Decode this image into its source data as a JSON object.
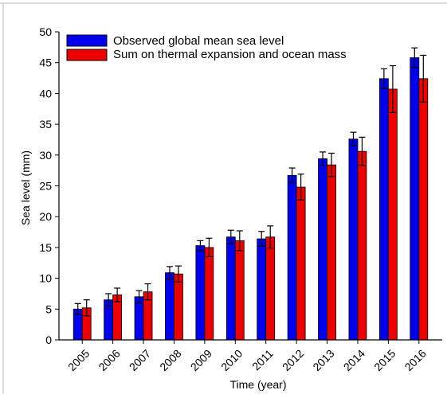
{
  "chart_data": {
    "type": "bar",
    "title": "",
    "xlabel": "Time (year)",
    "ylabel": "Sea level (mm)",
    "ylim": [
      0,
      50
    ],
    "yticks": [
      0,
      5,
      10,
      15,
      20,
      25,
      30,
      35,
      40,
      45,
      50
    ],
    "grid": false,
    "legend_position": "top-left",
    "categories": [
      "2005",
      "2006",
      "2007",
      "2008",
      "2009",
      "2010",
      "2011",
      "2012",
      "2013",
      "2014",
      "2015",
      "2016"
    ],
    "series": [
      {
        "name": "Observed global mean sea level",
        "color": "#0000ee",
        "values": [
          5.0,
          6.5,
          7.0,
          10.9,
          15.3,
          16.7,
          16.4,
          26.7,
          29.4,
          32.6,
          42.4,
          45.8
        ],
        "errors": [
          0.9,
          1.0,
          1.0,
          1.0,
          0.8,
          1.1,
          1.2,
          1.2,
          1.1,
          1.1,
          1.6,
          1.6
        ]
      },
      {
        "name": "Sum on thermal expansion and ocean mass",
        "color": "#ee0000",
        "values": [
          5.2,
          7.3,
          7.8,
          10.7,
          15.0,
          16.1,
          16.7,
          24.8,
          28.4,
          30.6,
          40.7,
          42.4
        ],
        "errors": [
          1.3,
          1.1,
          1.3,
          1.3,
          1.5,
          1.6,
          1.8,
          2.1,
          1.9,
          2.3,
          3.8,
          3.8
        ]
      }
    ]
  }
}
